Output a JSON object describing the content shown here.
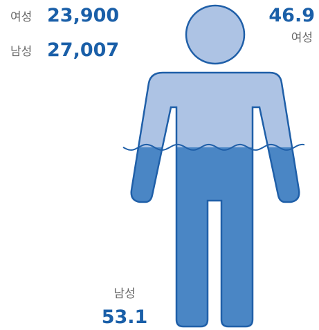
{
  "counts": [
    {
      "label": "여성",
      "value": "23,900"
    },
    {
      "label": "남성",
      "value": "27,007"
    }
  ],
  "shares": [
    {
      "label": "여성",
      "value": 46.9
    },
    {
      "label": "남성",
      "value": 53.1
    }
  ]
}
